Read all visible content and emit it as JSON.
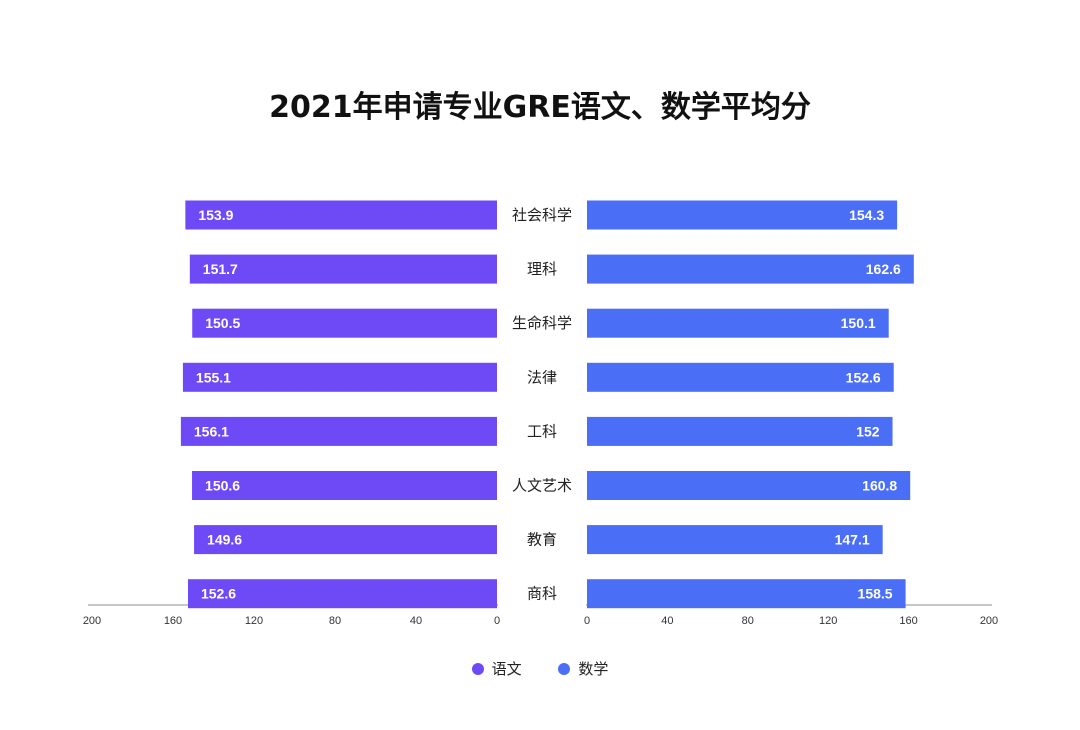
{
  "chart_data": {
    "type": "bar",
    "title": "2021年申请专业GRE语文、数学平均分",
    "categories": [
      "社会科学",
      "理科",
      "生命科学",
      "法律",
      "工科",
      "人文艺术",
      "教育",
      "商科"
    ],
    "series": [
      {
        "name": "语文",
        "color": "#6e4af7",
        "values": [
          153.9,
          151.7,
          150.5,
          155.1,
          156.1,
          150.6,
          149.6,
          152.6
        ],
        "labels": [
          "153.9",
          "151.7",
          "150.5",
          "155.1",
          "156.1",
          "150.6",
          "149.6",
          "152.6"
        ]
      },
      {
        "name": "数学",
        "color": "#4b6ef6",
        "values": [
          154.3,
          162.6,
          150.1,
          152.6,
          152,
          160.8,
          147.1,
          158.5
        ],
        "labels": [
          "154.3",
          "162.6",
          "150.1",
          "152.6",
          "152",
          "160.8",
          "147.1",
          "158.5"
        ]
      }
    ],
    "left_axis": {
      "ticks": [
        "200",
        "160",
        "120",
        "80",
        "40",
        "0"
      ],
      "range": [
        0,
        200
      ]
    },
    "right_axis": {
      "ticks": [
        "0",
        "40",
        "80",
        "120",
        "160",
        "200"
      ],
      "range": [
        0,
        200
      ]
    },
    "legend_position": "bottom",
    "grid": false
  }
}
